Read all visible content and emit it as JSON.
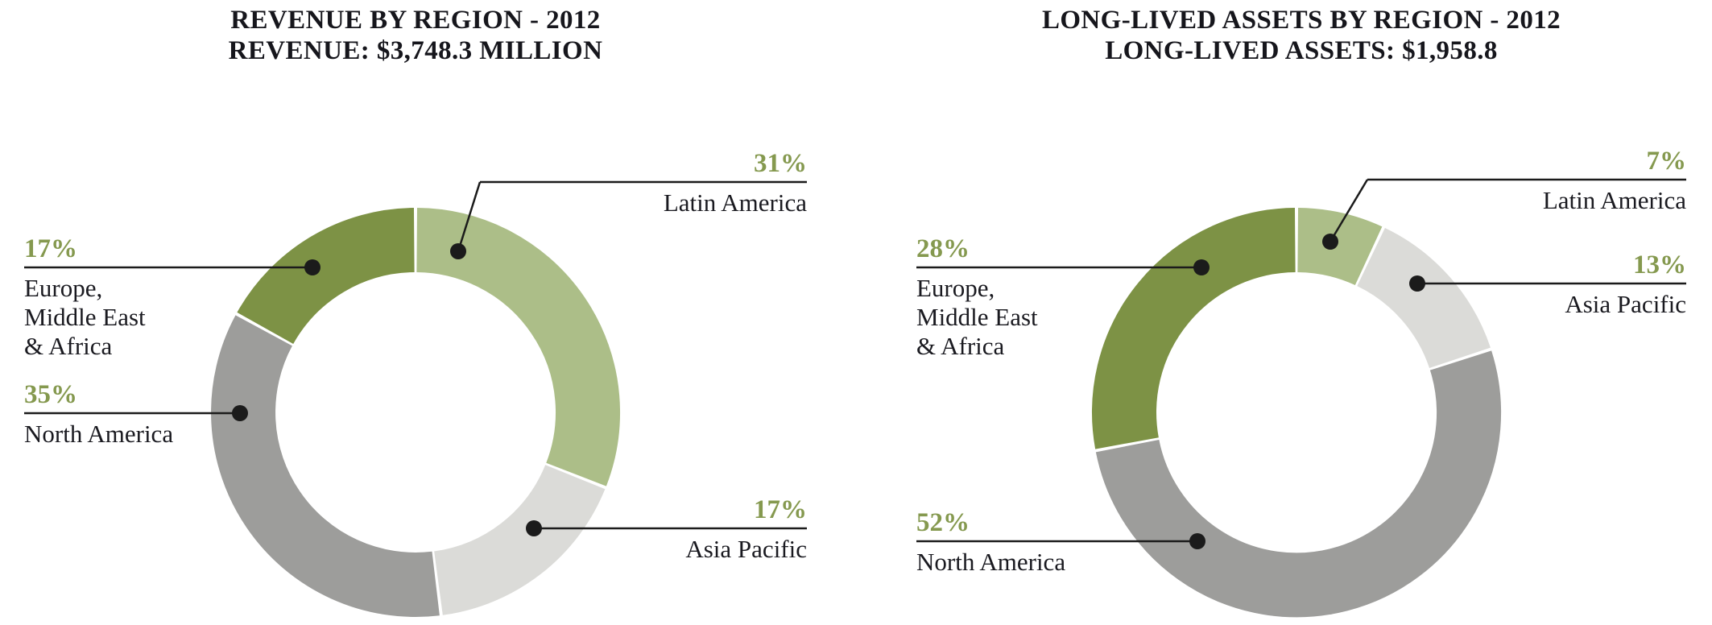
{
  "page": {
    "background": "#ffffff"
  },
  "colors": {
    "percent_text": "#85994F",
    "label_text": "#1A1A20",
    "title_text": "#16161C",
    "leader_line": "#1B1B1B",
    "segment_sage_green": "#ACBE88",
    "segment_light_gray": "#DBDBD8",
    "segment_mid_gray": "#9D9D9B",
    "segment_dark_green": "#7D9245"
  },
  "chart_data": [
    {
      "type": "pie",
      "subtype": "donut",
      "title": "REVENUE BY REGION - 2012",
      "subtitle": "REVENUE: $3,748.3 MILLION",
      "unit": "percent",
      "start_angle_deg": 0,
      "direction": "clockwise",
      "legend_position": "callout-labels",
      "segments": [
        {
          "label": "Latin America",
          "name_lines": [
            "Latin America"
          ],
          "value_pct": 31,
          "color": "#ACBE88"
        },
        {
          "label": "Asia Pacific",
          "name_lines": [
            "Asia Pacific"
          ],
          "value_pct": 17,
          "color": "#DBDBD8"
        },
        {
          "label": "North America",
          "name_lines": [
            "North America"
          ],
          "value_pct": 35,
          "color": "#9D9D9B"
        },
        {
          "label": "Europe, Middle East & Africa",
          "name_lines": [
            "Europe,",
            "Middle East",
            "& Africa"
          ],
          "value_pct": 17,
          "color": "#7D9245"
        }
      ]
    },
    {
      "type": "pie",
      "subtype": "donut",
      "title": "LONG-LIVED ASSETS BY REGION - 2012",
      "subtitle": "LONG-LIVED ASSETS: $1,958.8",
      "unit": "percent",
      "start_angle_deg": 0,
      "direction": "clockwise",
      "legend_position": "callout-labels",
      "segments": [
        {
          "label": "Latin America",
          "name_lines": [
            "Latin America"
          ],
          "value_pct": 7,
          "color": "#ACBE88"
        },
        {
          "label": "Asia Pacific",
          "name_lines": [
            "Asia Pacific"
          ],
          "value_pct": 13,
          "color": "#DBDBD8"
        },
        {
          "label": "North America",
          "name_lines": [
            "North America"
          ],
          "value_pct": 52,
          "color": "#9D9D9B"
        },
        {
          "label": "Europe, Middle East & Africa",
          "name_lines": [
            "Europe,",
            "Middle East",
            "& Africa"
          ],
          "value_pct": 28,
          "color": "#7D9245"
        }
      ]
    }
  ]
}
